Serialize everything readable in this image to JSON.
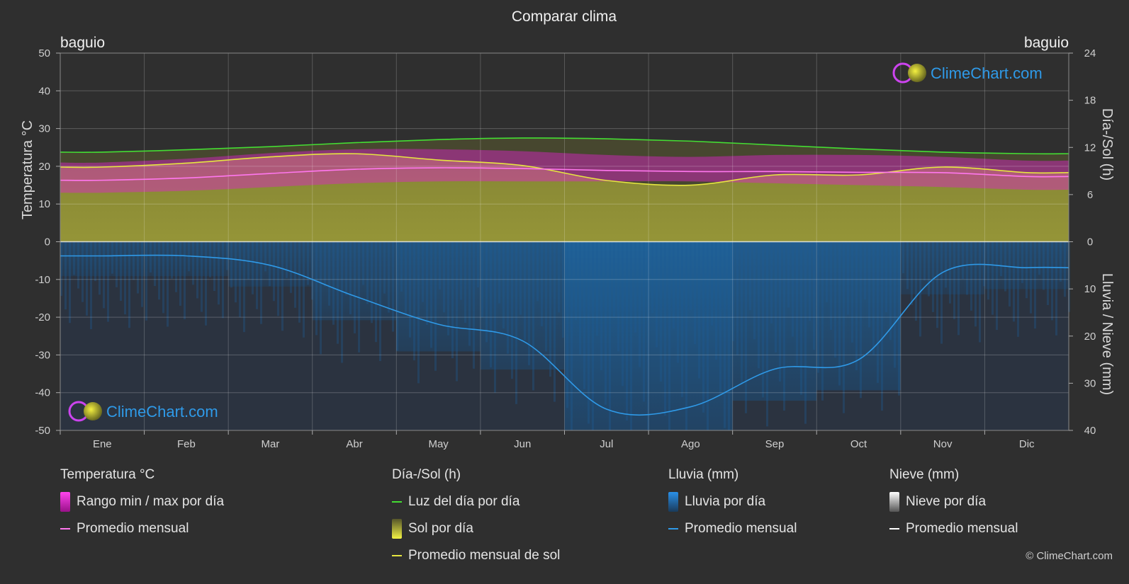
{
  "title": "Comparar clima",
  "location_left": "baguio",
  "location_right": "baguio",
  "brand": "ClimeChart.com",
  "copyright": "© ClimeChart.com",
  "colors": {
    "daylight": "#44dd33",
    "sunshine_avg": "#e6e640",
    "temp_avg": "#ff77ee",
    "temp_range": "#dd22cc",
    "sun_fill": "#a3a33a",
    "rain": "#2a7fd0",
    "rain_avg": "#2f9ae8",
    "snow_avg": "#ffffff"
  },
  "chart_data": {
    "type": "line",
    "months": [
      "Ene",
      "Feb",
      "Mar",
      "Abr",
      "May",
      "Jun",
      "Jul",
      "Ago",
      "Sep",
      "Oct",
      "Nov",
      "Dic"
    ],
    "axes": {
      "left": {
        "label": "Temperatura °C",
        "ticks": [
          "50",
          "40",
          "30",
          "20",
          "10",
          "0",
          "-10",
          "-20",
          "-30",
          "-40",
          "-50"
        ],
        "range": [
          -50,
          50
        ]
      },
      "right_top": {
        "label": "Día-/Sol (h)",
        "ticks": [
          "24",
          "18",
          "12",
          "6",
          "0"
        ],
        "range": [
          0,
          24
        ]
      },
      "right_bottom": {
        "label": "Lluvia / Nieve (mm)",
        "ticks": [
          "10",
          "20",
          "30",
          "40"
        ],
        "range": [
          0,
          40
        ]
      }
    },
    "series": [
      {
        "key": "daylight",
        "values": [
          11.4,
          11.7,
          12.1,
          12.6,
          13.0,
          13.2,
          13.1,
          12.8,
          12.3,
          11.8,
          11.4,
          11.2
        ]
      },
      {
        "key": "sunshine",
        "values": [
          9.5,
          10.0,
          10.8,
          11.2,
          10.4,
          9.7,
          7.8,
          7.2,
          8.5,
          8.5,
          9.5,
          8.8
        ]
      },
      {
        "key": "temp_avg",
        "values": [
          16.3,
          16.9,
          18.1,
          19.2,
          19.6,
          19.4,
          18.9,
          18.6,
          18.6,
          18.4,
          18.3,
          17.3
        ]
      },
      {
        "key": "temp_max",
        "values": [
          21.0,
          22.0,
          23.5,
          24.5,
          24.5,
          24.0,
          23.0,
          22.5,
          23.0,
          23.0,
          22.5,
          21.5
        ]
      },
      {
        "key": "temp_min",
        "values": [
          13.0,
          13.5,
          14.5,
          15.5,
          16.0,
          16.0,
          16.0,
          16.0,
          15.5,
          15.0,
          14.5,
          13.8
        ]
      },
      {
        "key": "rain_avg",
        "values": [
          3.0,
          3.0,
          5.0,
          11.5,
          17.5,
          21.0,
          35.5,
          35.0,
          27.0,
          25.0,
          6.5,
          5.5
        ]
      }
    ]
  },
  "legend": {
    "temperature": {
      "header": "Temperatura °C",
      "range": "Rango min / max por día",
      "avg": "Promedio mensual"
    },
    "sun": {
      "header": "Día-/Sol (h)",
      "daylight": "Luz del día por día",
      "sunshine": "Sol por día",
      "sunshine_avg": "Promedio mensual de sol"
    },
    "rain": {
      "header": "Lluvia (mm)",
      "daily": "Lluvia por día",
      "avg": "Promedio mensual"
    },
    "snow": {
      "header": "Nieve (mm)",
      "daily": "Nieve por día",
      "avg": "Promedio mensual"
    }
  }
}
